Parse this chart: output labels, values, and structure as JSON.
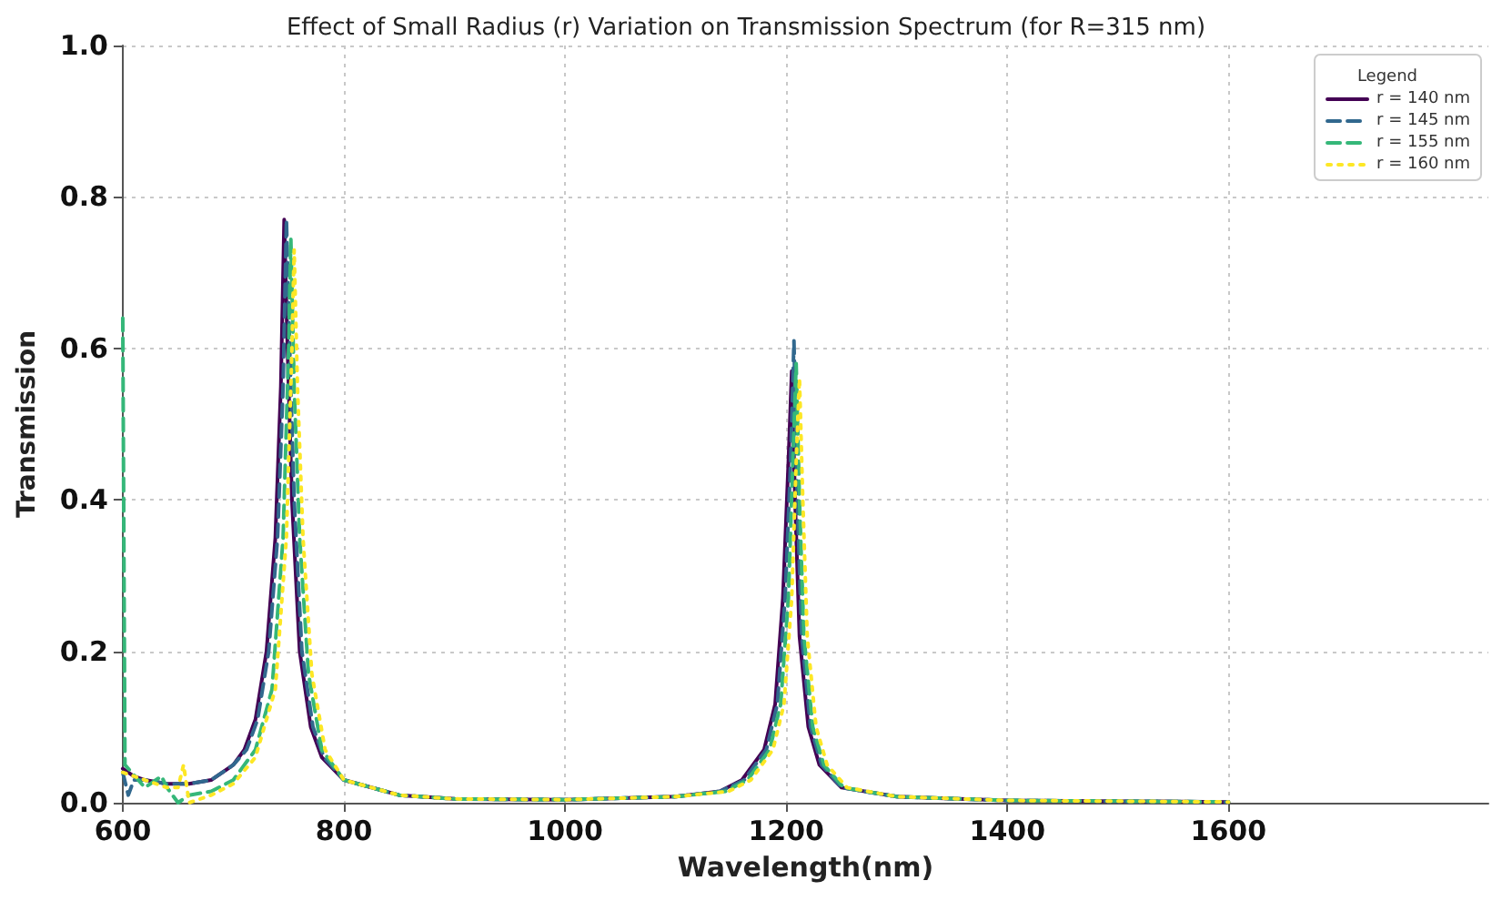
{
  "chart_data": {
    "type": "line",
    "title": "Effect of Small Radius (r) Variation on Transmission Spectrum (for R=315 nm)",
    "xlabel": "Wavelength(nm)",
    "ylabel": "Transmission",
    "legend_title": "Legend",
    "legend": "top right",
    "grid": true,
    "marker": "none",
    "xlim": [
      600,
      1835
    ],
    "xticks": [
      600,
      800,
      1000,
      1200,
      1400,
      1600
    ],
    "ylim": [
      0,
      1.0
    ],
    "yticks": [
      {
        "value": 0,
        "label": "0.0"
      },
      {
        "value": 0.2,
        "label": "0.2"
      },
      {
        "value": 0.4,
        "label": "0.4"
      },
      {
        "value": 0.6,
        "label": "0.6"
      },
      {
        "value": 0.8,
        "label": "0.8"
      },
      {
        "value": 1.0,
        "label": "1.0"
      }
    ],
    "series": [
      {
        "name": "r = 140 nm",
        "color": "#440154",
        "line_style": "solid",
        "x": [
          600,
          610,
          620,
          640,
          660,
          680,
          700,
          710,
          720,
          730,
          738,
          743,
          746,
          749,
          753,
          760,
          770,
          780,
          800,
          850,
          900,
          1000,
          1100,
          1140,
          1160,
          1180,
          1190,
          1197,
          1202,
          1205,
          1208,
          1212,
          1220,
          1230,
          1250,
          1300,
          1400,
          1600
        ],
        "values": [
          0.045,
          0.035,
          0.03,
          0.025,
          0.025,
          0.03,
          0.05,
          0.07,
          0.11,
          0.2,
          0.35,
          0.55,
          0.77,
          0.6,
          0.4,
          0.2,
          0.1,
          0.06,
          0.03,
          0.01,
          0.005,
          0.004,
          0.008,
          0.015,
          0.03,
          0.07,
          0.13,
          0.27,
          0.45,
          0.57,
          0.4,
          0.22,
          0.1,
          0.05,
          0.02,
          0.008,
          0.003,
          0.001
        ]
      },
      {
        "name": "r = 145 nm",
        "color": "#31688e",
        "line_style": "dashed",
        "x": [
          600,
          605,
          610,
          620,
          640,
          660,
          680,
          700,
          712,
          722,
          732,
          740,
          745,
          748,
          751,
          755,
          762,
          772,
          782,
          800,
          850,
          900,
          1000,
          1100,
          1140,
          1162,
          1182,
          1192,
          1199,
          1204,
          1207,
          1210,
          1214,
          1222,
          1232,
          1250,
          1300,
          1400,
          1600
        ],
        "values": [
          0.04,
          0.01,
          0.03,
          0.03,
          0.025,
          0.025,
          0.03,
          0.05,
          0.07,
          0.11,
          0.2,
          0.35,
          0.55,
          0.77,
          0.6,
          0.4,
          0.2,
          0.1,
          0.06,
          0.03,
          0.01,
          0.005,
          0.004,
          0.008,
          0.015,
          0.03,
          0.07,
          0.13,
          0.27,
          0.45,
          0.61,
          0.4,
          0.22,
          0.1,
          0.05,
          0.02,
          0.008,
          0.003,
          0.001
        ]
      },
      {
        "name": "r = 155 nm",
        "color": "#35b779",
        "line_style": "dashed",
        "x": [
          600,
          602,
          620,
          635,
          640,
          650,
          660,
          680,
          700,
          720,
          735,
          745,
          750,
          752,
          755,
          760,
          768,
          780,
          800,
          850,
          900,
          1000,
          1100,
          1145,
          1165,
          1185,
          1195,
          1202,
          1206,
          1209,
          1212,
          1216,
          1224,
          1234,
          1252,
          1300,
          1400,
          1600
        ],
        "values": [
          0.64,
          0.05,
          0.02,
          0.035,
          0.02,
          0.0,
          0.01,
          0.015,
          0.03,
          0.07,
          0.15,
          0.35,
          0.6,
          0.745,
          0.55,
          0.35,
          0.17,
          0.07,
          0.03,
          0.01,
          0.005,
          0.004,
          0.008,
          0.015,
          0.03,
          0.07,
          0.13,
          0.27,
          0.45,
          0.58,
          0.4,
          0.22,
          0.1,
          0.05,
          0.02,
          0.008,
          0.003,
          0.001
        ]
      },
      {
        "name": "r = 160 nm",
        "color": "#fde725",
        "line_style": "dotted",
        "x": [
          600,
          620,
          640,
          650,
          655,
          660,
          680,
          700,
          720,
          738,
          748,
          753,
          755,
          758,
          763,
          771,
          783,
          800,
          850,
          900,
          1000,
          1100,
          1148,
          1168,
          1188,
          1198,
          1205,
          1209,
          1212,
          1215,
          1219,
          1227,
          1237,
          1255,
          1300,
          1400,
          1600
        ],
        "values": [
          0.04,
          0.03,
          0.02,
          0.02,
          0.05,
          0.0,
          0.01,
          0.025,
          0.06,
          0.15,
          0.35,
          0.6,
          0.73,
          0.55,
          0.35,
          0.17,
          0.07,
          0.03,
          0.01,
          0.005,
          0.004,
          0.008,
          0.015,
          0.03,
          0.07,
          0.13,
          0.27,
          0.45,
          0.56,
          0.4,
          0.22,
          0.1,
          0.05,
          0.02,
          0.008,
          0.003,
          0.001
        ]
      }
    ]
  }
}
